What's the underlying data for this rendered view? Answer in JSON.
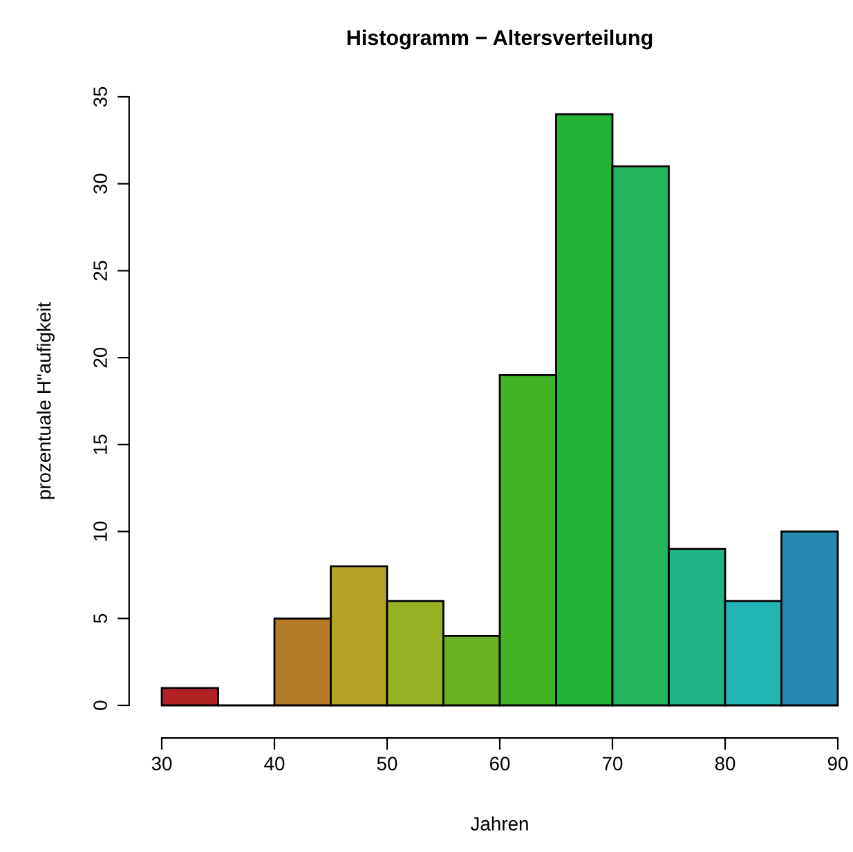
{
  "chart_data": {
    "type": "histogram",
    "title": "Histogramm − Altersverteilung",
    "xlabel": "Jahren",
    "ylabel": "prozentuale H\"aufigkeit",
    "bins": [
      30,
      35,
      40,
      45,
      50,
      55,
      60,
      65,
      70,
      75,
      80,
      85,
      90
    ],
    "values": [
      1,
      0,
      5,
      8,
      6,
      4,
      19,
      34,
      31,
      9,
      6,
      10
    ],
    "colors": [
      "#b22222",
      null,
      "#b47a27",
      "#b3a425",
      "#96b224",
      "#6bb124",
      "#42b324",
      "#25b335",
      "#23b45c",
      "#22b486",
      "#22b3b3",
      "#2589b2"
    ],
    "xlim": [
      30,
      90
    ],
    "ylim": [
      0,
      35
    ],
    "xticks": [
      30,
      40,
      50,
      60,
      70,
      80,
      90
    ],
    "yticks": [
      0,
      5,
      10,
      15,
      20,
      25,
      30,
      35
    ],
    "grid": false
  }
}
